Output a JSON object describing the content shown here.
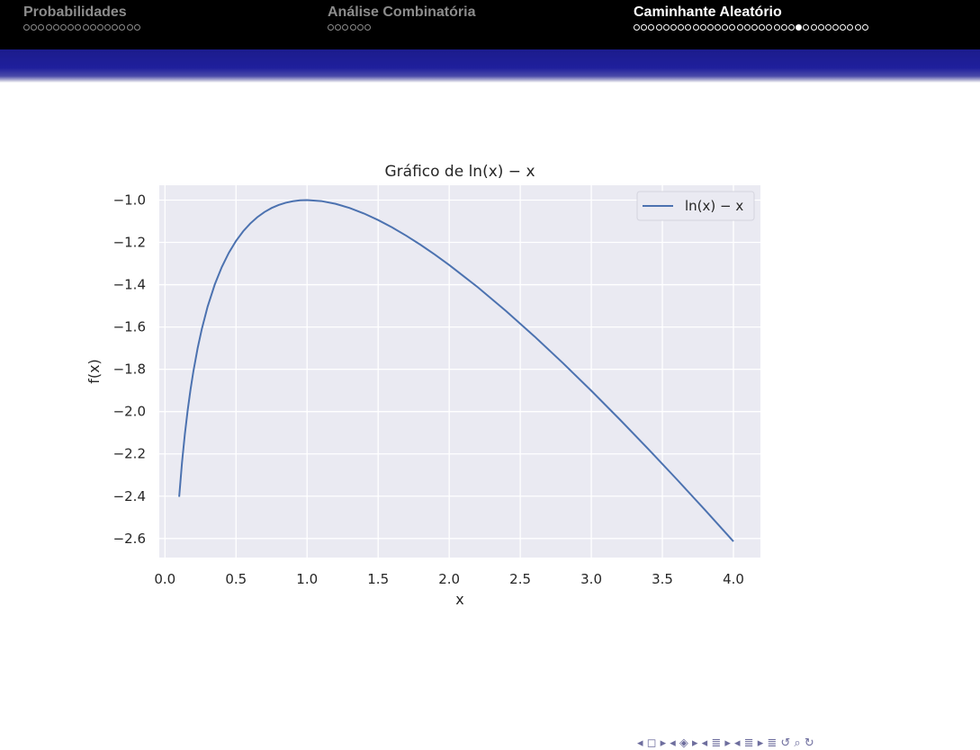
{
  "header": {
    "sections": [
      {
        "title": "Probabilidades",
        "dots": 16,
        "filled": -1,
        "active": false
      },
      {
        "title": "Análise Combinatória",
        "dots": 6,
        "filled": -1,
        "active": false
      },
      {
        "title": "Caminhante Aleatório",
        "dots": 32,
        "filled": 22,
        "active": true
      }
    ]
  },
  "chart_data": {
    "type": "line",
    "title": "Gráfico de ln(x) − x",
    "xlabel": "x",
    "ylabel": "f(x)",
    "xlim": [
      -0.04,
      4.19
    ],
    "ylim": [
      -2.69,
      -0.93
    ],
    "xticks": [
      0.0,
      0.5,
      1.0,
      1.5,
      2.0,
      2.5,
      3.0,
      3.5,
      4.0
    ],
    "xtick_labels": [
      "0.0",
      "0.5",
      "1.0",
      "1.5",
      "2.0",
      "2.5",
      "3.0",
      "3.5",
      "4.0"
    ],
    "yticks": [
      -1.0,
      -1.2,
      -1.4,
      -1.6,
      -1.8,
      -2.0,
      -2.2,
      -2.4,
      -2.6
    ],
    "ytick_labels": [
      "−1.0",
      "−1.2",
      "−1.4",
      "−1.6",
      "−1.8",
      "−2.0",
      "−2.2",
      "−2.4",
      "−2.6"
    ],
    "grid": true,
    "legend_position": "top-right",
    "series": [
      {
        "name": "ln(x) − x",
        "color": "#4c72b0",
        "x": [
          0.1,
          0.12,
          0.14,
          0.16,
          0.18,
          0.2,
          0.23,
          0.26,
          0.3,
          0.35,
          0.4,
          0.45,
          0.5,
          0.55,
          0.6,
          0.65,
          0.7,
          0.75,
          0.8,
          0.85,
          0.9,
          0.95,
          1.0,
          1.1,
          1.2,
          1.3,
          1.4,
          1.5,
          1.6,
          1.7,
          1.8,
          1.9,
          2.0,
          2.2,
          2.4,
          2.6,
          2.8,
          3.0,
          3.2,
          3.4,
          3.6,
          3.8,
          4.0
        ],
        "y": [
          -2.4026,
          -2.2403,
          -2.1061,
          -1.9926,
          -1.8948,
          -1.8094,
          -1.6997,
          -1.6073,
          -1.504,
          -1.3998,
          -1.3163,
          -1.2485,
          -1.1931,
          -1.1478,
          -1.1108,
          -1.0808,
          -1.0567,
          -1.0377,
          -1.0231,
          -1.0125,
          -1.0054,
          -1.0013,
          -1.0,
          -1.0047,
          -1.0177,
          -1.0376,
          -1.0635,
          -1.0945,
          -1.13,
          -1.1694,
          -1.2122,
          -1.2581,
          -1.3069,
          -1.4115,
          -1.5245,
          -1.6445,
          -1.7704,
          -1.9014,
          -2.0369,
          -2.1763,
          -2.3191,
          -2.465,
          -2.6137
        ]
      }
    ]
  },
  "footer": {
    "nav_symbols": "◂ ◻ ▸ ◂ ◈ ▸ ◂ ≣ ▸ ◂ ≣ ▸   ≣   ↺ ⌕ ↻"
  }
}
